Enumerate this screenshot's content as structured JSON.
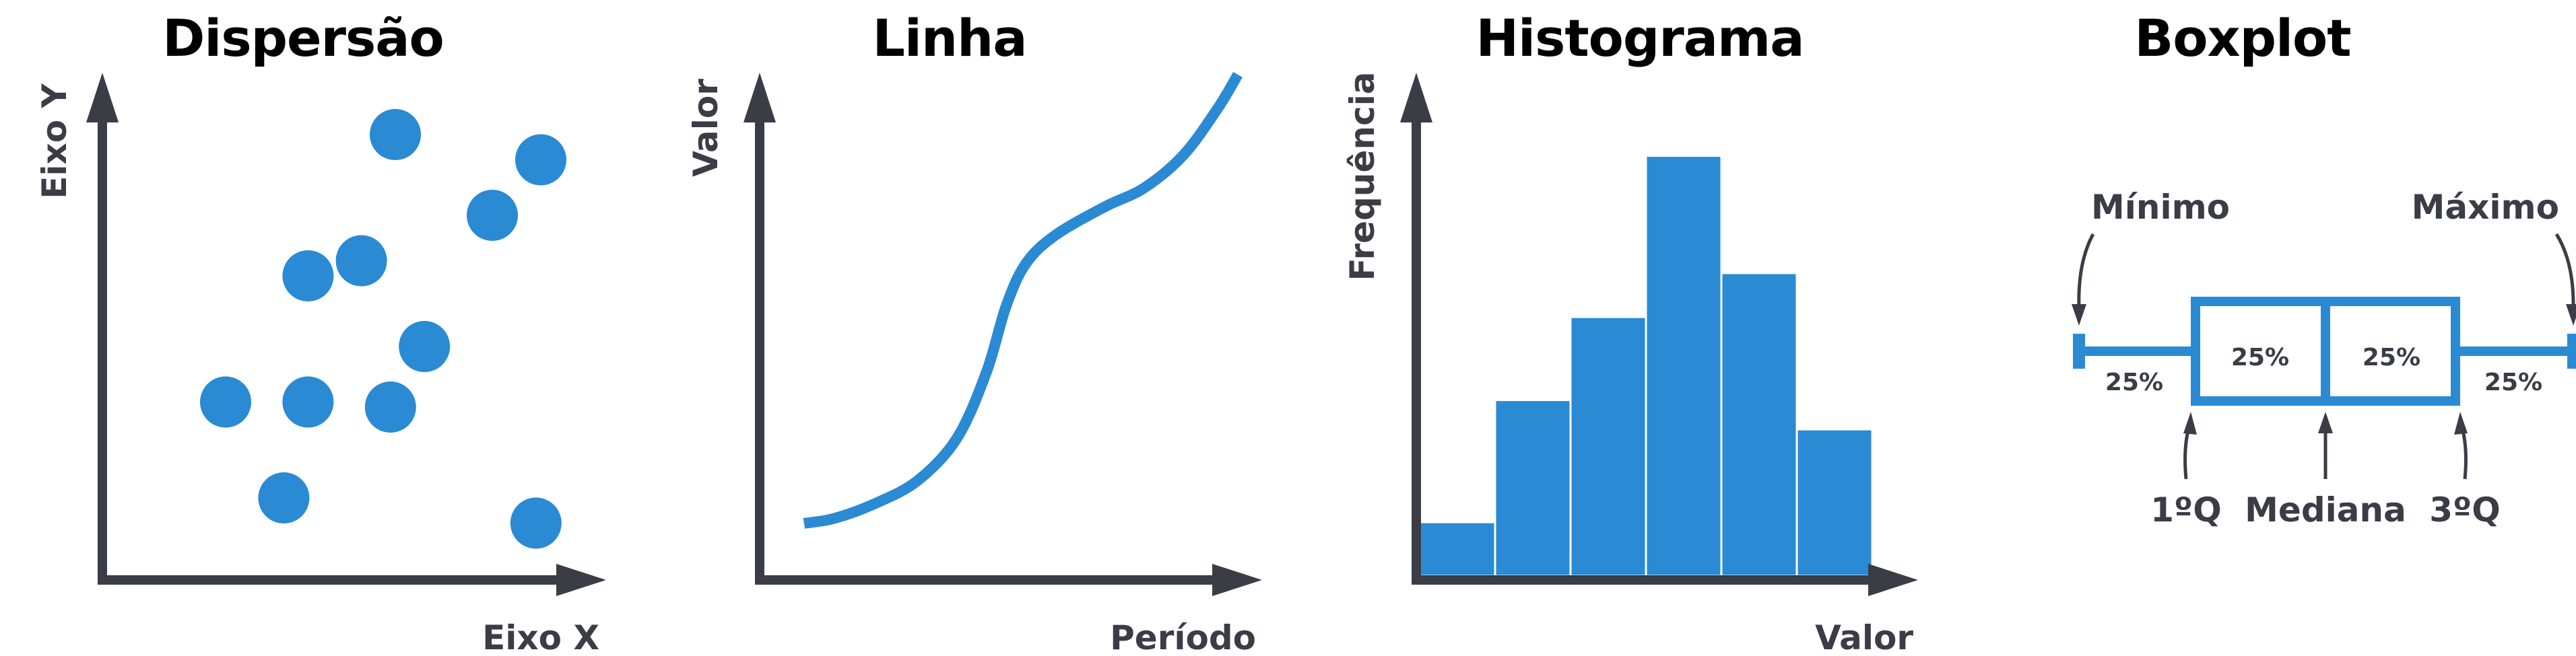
{
  "colors": {
    "ink": "#3a3d45",
    "accent": "#2a8ad4",
    "background": "#ffffff"
  },
  "chart_data": [
    {
      "type": "scatter",
      "title": "Dispersão",
      "xlabel": "Eixo X",
      "ylabel": "Eixo Y",
      "xlim": [
        0,
        10
      ],
      "ylim": [
        0,
        10
      ],
      "grid": false,
      "points": [
        {
          "x": 6.0,
          "y": 8.8
        },
        {
          "x": 9.0,
          "y": 8.3
        },
        {
          "x": 8.0,
          "y": 7.2
        },
        {
          "x": 5.3,
          "y": 6.3
        },
        {
          "x": 4.2,
          "y": 6.0
        },
        {
          "x": 6.6,
          "y": 4.6
        },
        {
          "x": 2.5,
          "y": 3.5
        },
        {
          "x": 4.2,
          "y": 3.5
        },
        {
          "x": 5.9,
          "y": 3.4
        },
        {
          "x": 3.7,
          "y": 1.6
        },
        {
          "x": 8.9,
          "y": 1.1
        }
      ]
    },
    {
      "type": "line",
      "title": "Linha",
      "xlabel": "Período",
      "ylabel": "Valor",
      "xlim": [
        0,
        10
      ],
      "ylim": [
        0,
        10
      ],
      "grid": false,
      "series": [
        {
          "x": [
            0.9,
            1.5,
            2.3,
            3.2,
            4.0,
            4.6,
            5.0,
            5.4,
            6.0,
            7.0,
            7.8,
            8.6,
            9.3,
            9.7
          ],
          "y": [
            1.2,
            1.3,
            1.6,
            2.1,
            3.0,
            4.4,
            5.8,
            6.7,
            7.3,
            7.9,
            8.3,
            9.0,
            10.0,
            10.7
          ]
        }
      ]
    },
    {
      "type": "bar",
      "title": "Histograma",
      "xlabel": "Valor",
      "ylabel": "Frequência",
      "ylim": [
        0,
        10
      ],
      "grid": false,
      "values": [
        1.1,
        3.6,
        5.3,
        8.6,
        6.2,
        3.0
      ]
    },
    {
      "type": "boxplot",
      "title": "Boxplot",
      "labels": {
        "min": "Mínimo",
        "max": "Máximo",
        "q1": "1ºQ",
        "median": "Mediana",
        "q3": "3ºQ"
      },
      "five_number": {
        "min": 0,
        "q1": 25,
        "median": 50,
        "q3": 75,
        "max": 100
      },
      "segment_labels": [
        "25%",
        "25%",
        "25%",
        "25%"
      ]
    }
  ]
}
